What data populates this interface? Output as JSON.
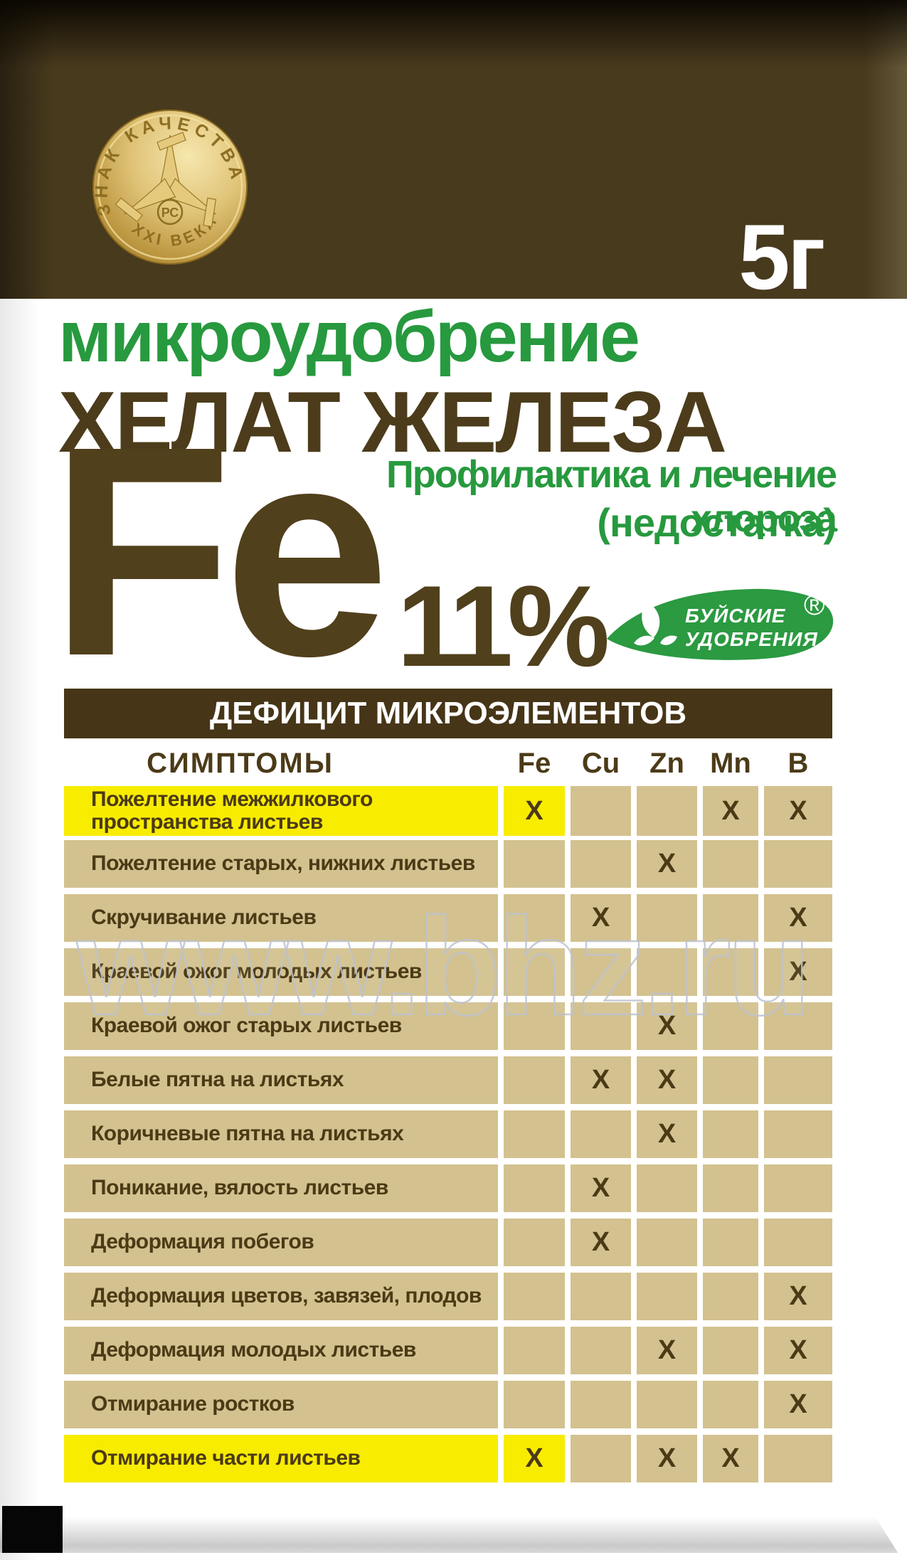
{
  "colors": {
    "brand_green": "#27993e",
    "leaf_green": "#2b9a41",
    "package_brown": "#483a1d",
    "bar_brown": "#463517",
    "text_brown": "#4b3a16",
    "cell_tan": "#d3c28f",
    "highlight_yellow": "#f8ec00",
    "medal_gold": "#dfc276"
  },
  "header": {
    "weight": "5г",
    "medal": {
      "arc_top": "ЗНАК КАЧЕСТВА",
      "arc_bottom": "XXI ВЕКА",
      "center_mark": "РС"
    }
  },
  "titles": {
    "category": "микроудобрение",
    "product": "ХЕЛАТ ЖЕЛЕЗА",
    "subtitle_line1": "Профилактика и лечение хлороза",
    "subtitle_line2": "(недостатка)",
    "element": "Fe",
    "percent": "11%"
  },
  "brand": {
    "name_line1": "БУЙСКИЕ",
    "name_line2": "УДОБРЕНИЯ",
    "registered": "®"
  },
  "table": {
    "bar_title": "ДЕФИЦИТ МИКРОЭЛЕМЕНТОВ",
    "symptoms_label": "СИМПТОМЫ",
    "columns": [
      "Fe",
      "Cu",
      "Zn",
      "Mn",
      "B"
    ],
    "mark": "X",
    "rows": [
      {
        "label": "Пожелтение межжилкового пространства листьев",
        "highlight": true,
        "marks": [
          "Fe",
          "Mn",
          "B"
        ]
      },
      {
        "label": "Пожелтение старых, нижних листьев",
        "highlight": false,
        "marks": [
          "Zn"
        ]
      },
      {
        "label": "Скручивание листьев",
        "highlight": false,
        "marks": [
          "Cu",
          "B"
        ]
      },
      {
        "label": "Краевой ожог молодых листьев",
        "highlight": false,
        "marks": [
          "B"
        ]
      },
      {
        "label": "Краевой ожог старых листьев",
        "highlight": false,
        "marks": [
          "Zn"
        ]
      },
      {
        "label": "Белые пятна на листьях",
        "highlight": false,
        "marks": [
          "Cu",
          "Zn"
        ]
      },
      {
        "label": "Коричневые пятна на листьях",
        "highlight": false,
        "marks": [
          "Zn"
        ]
      },
      {
        "label": "Поникание, вялость листьев",
        "highlight": false,
        "marks": [
          "Cu"
        ]
      },
      {
        "label": "Деформация побегов",
        "highlight": false,
        "marks": [
          "Cu"
        ]
      },
      {
        "label": "Деформация цветов, завязей, плодов",
        "highlight": false,
        "marks": [
          "B"
        ]
      },
      {
        "label": "Деформация молодых листьев",
        "highlight": false,
        "marks": [
          "Zn",
          "B"
        ]
      },
      {
        "label": "Отмирание ростков",
        "highlight": false,
        "marks": [
          "B"
        ]
      },
      {
        "label": "Отмирание части листьев",
        "highlight": true,
        "marks": [
          "Fe",
          "Zn",
          "Mn"
        ]
      }
    ]
  },
  "watermark": "www.bhz.ru"
}
